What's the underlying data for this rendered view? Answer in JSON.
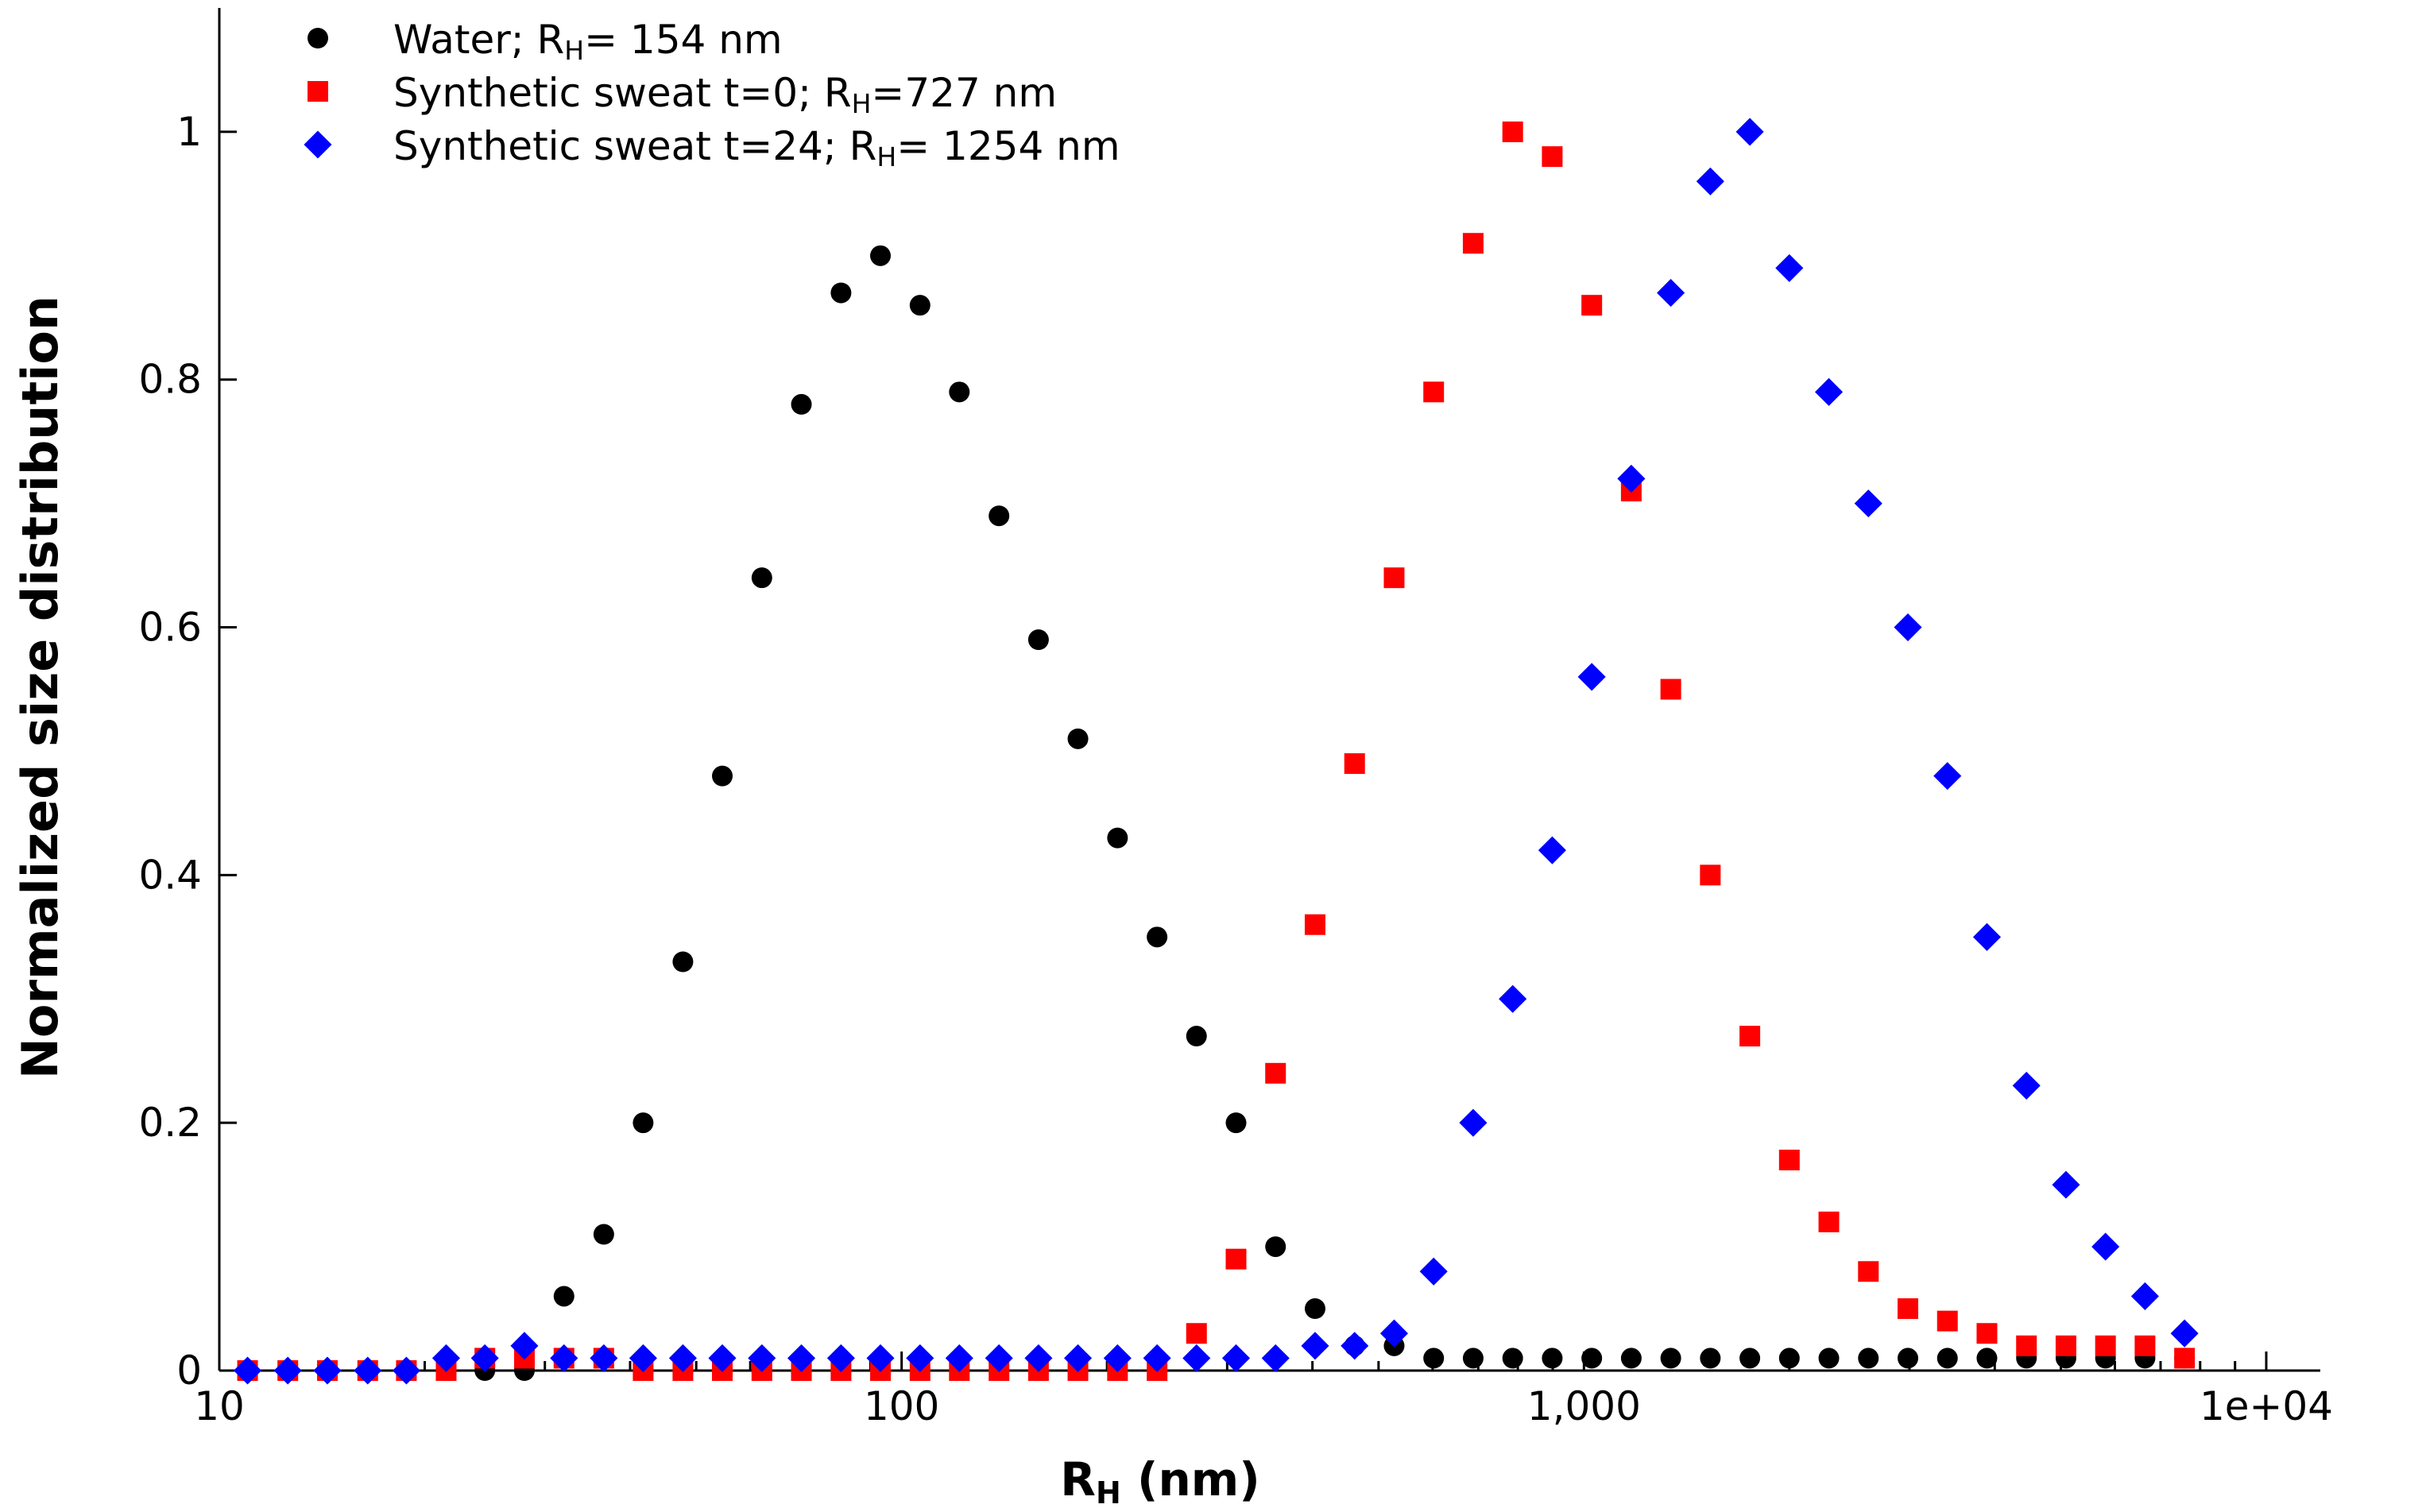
{
  "chart_data": {
    "type": "scatter",
    "title": "",
    "xlabel": "R",
    "xlabel_sub": "H",
    "xlabel_unit": " (nm)",
    "ylabel": "Normalized size distribution",
    "x_scale": "log",
    "xlim": [
      10,
      12000
    ],
    "ylim": [
      0,
      1.1
    ],
    "x_ticks": [
      {
        "value": 10,
        "label": "10"
      },
      {
        "value": 100,
        "label": "100"
      },
      {
        "value": 1000,
        "label": "1,000"
      },
      {
        "value": 10000,
        "label": "1e+04"
      }
    ],
    "y_ticks": [
      {
        "value": 0,
        "label": "0"
      },
      {
        "value": 0.2,
        "label": "0.2"
      },
      {
        "value": 0.4,
        "label": "0.4"
      },
      {
        "value": 0.6,
        "label": "0.6"
      },
      {
        "value": 0.8,
        "label": "0.8"
      },
      {
        "value": 1,
        "label": "1"
      }
    ],
    "grid": false,
    "legend_position": "top-left",
    "series": [
      {
        "name": "Water; R",
        "name_sub": "H",
        "name_tail": "= 154 nm",
        "marker": "circle",
        "color": "#000000",
        "x": [
          11.0,
          12.6,
          14.4,
          16.5,
          18.8,
          21.5,
          24.5,
          28.0,
          32.0,
          36.6,
          41.8,
          47.8,
          54.6,
          62.4,
          71.3,
          81.5,
          93.1,
          106.4,
          121.5,
          138.9,
          158.7,
          181.3,
          207.2,
          236.8,
          270.5,
          309.1,
          353.2,
          403.6,
          461.2,
          527.0,
          602.2,
          688.1,
          786.3,
          898.5,
          1026.7,
          1173.2,
          1340.5,
          1531.8,
          1750.4,
          2000.0,
          2285.3,
          2611.3,
          2983.9,
          3409.6,
          3896.0,
          4451.8,
          5086.9,
          5812.6,
          6641.9,
          7589.5
        ],
        "y": [
          0.0,
          0.0,
          0.0,
          0.0,
          0.0,
          0.0,
          0.0,
          0.0,
          0.06,
          0.11,
          0.2,
          0.33,
          0.48,
          0.64,
          0.78,
          0.87,
          0.9,
          0.86,
          0.79,
          0.69,
          0.59,
          0.51,
          0.43,
          0.35,
          0.27,
          0.2,
          0.1,
          0.05,
          0.02,
          0.02,
          0.01,
          0.01,
          0.01,
          0.01,
          0.01,
          0.01,
          0.01,
          0.01,
          0.01,
          0.01,
          0.01,
          0.01,
          0.01,
          0.01,
          0.01,
          0.01,
          0.01,
          0.01,
          0.01,
          0.01
        ]
      },
      {
        "name": "Synthetic sweat t=0; R",
        "name_sub": "H",
        "name_tail": "=727 nm",
        "marker": "square",
        "color": "#ff0000",
        "x": [
          11.0,
          12.6,
          14.4,
          16.5,
          18.8,
          21.5,
          24.5,
          28.0,
          32.0,
          36.6,
          41.8,
          47.8,
          54.6,
          62.4,
          71.3,
          81.5,
          93.1,
          106.4,
          121.5,
          138.9,
          158.7,
          181.3,
          207.2,
          236.8,
          270.5,
          309.1,
          353.2,
          403.6,
          461.2,
          527.0,
          602.2,
          688.1,
          786.3,
          898.5,
          1026.7,
          1173.2,
          1340.5,
          1531.8,
          1750.4,
          2000.0,
          2285.3,
          2611.3,
          2983.9,
          3409.6,
          3896.0,
          4451.8,
          5086.9,
          5812.6,
          6641.9,
          7589.5
        ],
        "y": [
          0.0,
          0.0,
          0.0,
          0.0,
          0.0,
          0.0,
          0.01,
          0.01,
          0.01,
          0.01,
          0.0,
          0.0,
          0.0,
          0.0,
          0.0,
          0.0,
          0.0,
          0.0,
          0.0,
          0.0,
          0.0,
          0.0,
          0.0,
          0.0,
          0.03,
          0.09,
          0.24,
          0.36,
          0.49,
          0.64,
          0.79,
          0.91,
          1.0,
          0.98,
          0.86,
          0.71,
          0.55,
          0.4,
          0.27,
          0.17,
          0.12,
          0.08,
          0.05,
          0.04,
          0.03,
          0.02,
          0.02,
          0.02,
          0.02,
          0.01
        ]
      },
      {
        "name": "Synthetic sweat t=24; R",
        "name_sub": "H",
        "name_tail": "= 1254 nm",
        "marker": "diamond",
        "color": "#0000ff",
        "x": [
          11.0,
          12.6,
          14.4,
          16.5,
          18.8,
          21.5,
          24.5,
          28.0,
          32.0,
          36.6,
          41.8,
          47.8,
          54.6,
          62.4,
          71.3,
          81.5,
          93.1,
          106.4,
          121.5,
          138.9,
          158.7,
          181.3,
          207.2,
          236.8,
          270.5,
          309.1,
          353.2,
          403.6,
          461.2,
          527.0,
          602.2,
          688.1,
          786.3,
          898.5,
          1026.7,
          1173.2,
          1340.5,
          1531.8,
          1750.4,
          2000.0,
          2285.3,
          2611.3,
          2983.9,
          3409.6,
          3896.0,
          4451.8,
          5086.9,
          5812.6,
          6641.9,
          7589.5
        ],
        "y": [
          0.0,
          0.0,
          0.0,
          0.0,
          0.0,
          0.01,
          0.01,
          0.02,
          0.01,
          0.01,
          0.01,
          0.01,
          0.01,
          0.01,
          0.01,
          0.01,
          0.01,
          0.01,
          0.01,
          0.01,
          0.01,
          0.01,
          0.01,
          0.01,
          0.01,
          0.01,
          0.01,
          0.02,
          0.02,
          0.03,
          0.08,
          0.2,
          0.3,
          0.42,
          0.56,
          0.72,
          0.87,
          0.96,
          1.0,
          0.89,
          0.79,
          0.7,
          0.6,
          0.48,
          0.35,
          0.23,
          0.15,
          0.1,
          0.06,
          0.03
        ]
      }
    ]
  }
}
